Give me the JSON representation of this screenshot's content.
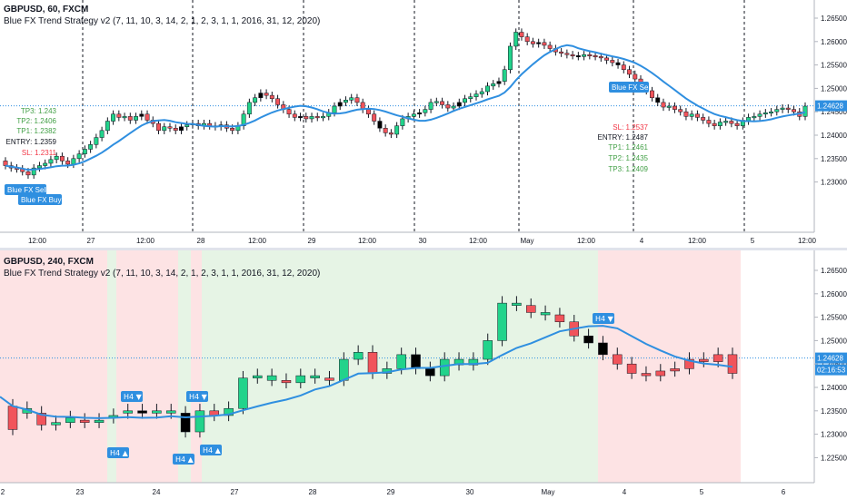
{
  "colors": {
    "bull": "#22d38b",
    "bear": "#f1545b",
    "neutral": "#000000",
    "ma": "#2f8fe0",
    "label": "#2f8fe0",
    "bg_red": "#fde3e4",
    "bg_green": "#e6f4e5",
    "price_tag": "#2f8fe0",
    "tp": "#43a047",
    "entry": "#131722",
    "sl": "#f23645"
  },
  "pane1": {
    "symbol": "GBPUSD, 60, FXCM",
    "indicator": "Blue FX Trend Strategy v2 (7, 11, 10, 3, 14, 2, 1, 2, 3, 1, 1, 2016, 31, 12, 2020)",
    "price_label": "1.24628",
    "y_ticks": [
      "1.26500",
      "1.26000",
      "1.25500",
      "1.25000",
      "1.24500",
      "1.24000",
      "1.23500",
      "1.23000"
    ],
    "x_ticks": [
      "12:00",
      "27",
      "12:00",
      "28",
      "12:00",
      "29",
      "12:00",
      "30",
      "12:00",
      "May",
      "12:00",
      "4",
      "12:00",
      "5",
      "12:00"
    ],
    "buy_levels": {
      "tp3": "TP3: 1.243",
      "tp2": "TP2: 1.2406",
      "tp1": "TP1: 1.2382",
      "entry": "ENTRY: 1.2359",
      "sl": "SL: 1.2311"
    },
    "sell_levels": {
      "sl": "SL: 1.2537",
      "entry": "ENTRY: 1.2487",
      "tp1": "TP1: 1.2461",
      "tp2": "TP2: 1.2435",
      "tp3": "TP3: 1.2409"
    },
    "signal_buy_1": "Blue FX Buy",
    "signal_buy_2": "Blue FX Sell",
    "signal_sell": "Blue FX Sell"
  },
  "pane2": {
    "symbol": "GBPUSD, 240, FXCM",
    "indicator": "Blue FX Trend Strategy v2 (7, 11, 10, 3, 14, 2, 1, 2, 3, 1, 1, 2016, 31, 12, 2020)",
    "price_label": "1.24628",
    "countdown": "02:16:53",
    "y_ticks": [
      "1.26500",
      "1.26000",
      "1.25500",
      "1.25000",
      "1.24500",
      "1.24000",
      "1.23500",
      "1.23000",
      "1.22500"
    ],
    "x_ticks": [
      "2",
      "23",
      "24",
      "27",
      "28",
      "29",
      "30",
      "May",
      "4",
      "5",
      "6"
    ],
    "labels": {
      "h4_down": "H4 ▼",
      "h4_up": "H4 ▲"
    }
  }
}
